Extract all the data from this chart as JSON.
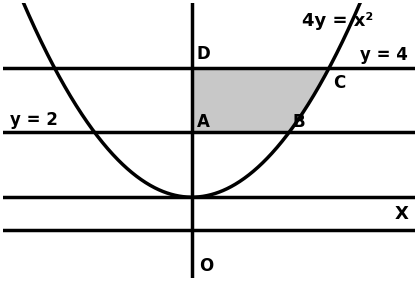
{
  "bg_color": "#ffffff",
  "line_color": "#000000",
  "shaded_color": "#c8c8c8",
  "shaded_alpha": 1.0,
  "lw": 2.5,
  "x_range": [
    -5.5,
    6.5
  ],
  "y_range": [
    -2.5,
    6.0
  ],
  "hline_y4": 4,
  "hline_y2": 2,
  "hline_ybottom": -1.0,
  "points": {
    "D": [
      0,
      4
    ],
    "C": [
      4,
      4
    ],
    "A": [
      0,
      2
    ],
    "B": [
      2.8284271247,
      2
    ]
  },
  "label_y4": "y = 4",
  "label_y2": "y = 2",
  "label_X": "X",
  "label_O": "O",
  "label_parabola": "4y = x²",
  "label_D": "D",
  "label_C": "C",
  "label_A": "A",
  "label_B": "B",
  "fontsize_labels": 12,
  "fontsize_eq": 13
}
